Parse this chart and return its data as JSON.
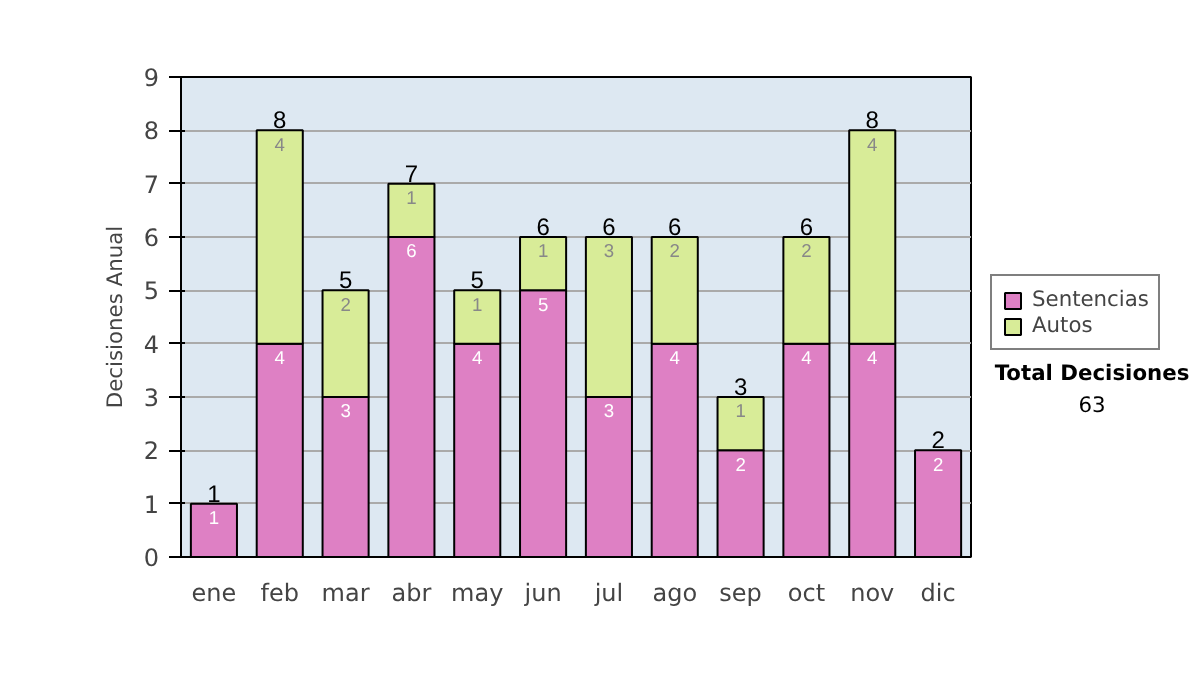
{
  "chart_data": {
    "type": "bar",
    "stacked": true,
    "ylabel": "Decisiones Anual",
    "categories": [
      "ene",
      "feb",
      "mar",
      "abr",
      "may",
      "jun",
      "jul",
      "ago",
      "sep",
      "oct",
      "nov",
      "dic"
    ],
    "series": [
      {
        "name": "Sentencias",
        "color": "#de80c4",
        "values": [
          1,
          4,
          3,
          6,
          4,
          5,
          3,
          4,
          2,
          4,
          4,
          2
        ]
      },
      {
        "name": "Autos",
        "color": "#d8ec98",
        "values": [
          null,
          4,
          2,
          1,
          1,
          1,
          3,
          2,
          1,
          2,
          4,
          null
        ]
      }
    ],
    "ylim": [
      0,
      9
    ],
    "yticks": [
      0,
      1,
      2,
      3,
      4,
      5,
      6,
      7,
      8,
      9
    ],
    "grid": "y",
    "legend": "right",
    "data_labels": true,
    "totals": [
      "1",
      "8",
      "5",
      "7",
      "5",
      "6",
      "6",
      "6",
      "3",
      "6",
      "8",
      "2"
    ],
    "annotations": [
      "Total Decisiones",
      "63"
    ]
  }
}
